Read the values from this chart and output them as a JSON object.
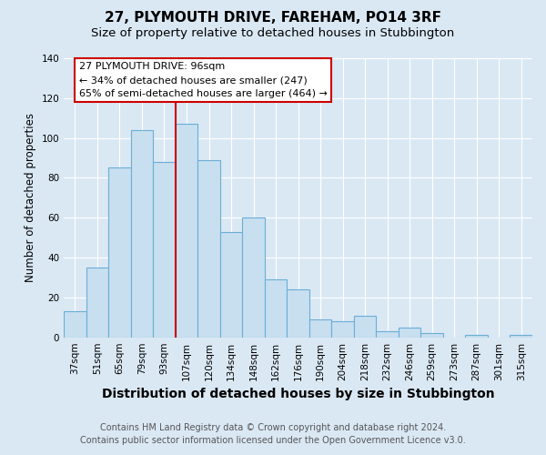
{
  "title": "27, PLYMOUTH DRIVE, FAREHAM, PO14 3RF",
  "subtitle": "Size of property relative to detached houses in Stubbington",
  "xlabel": "Distribution of detached houses by size in Stubbington",
  "ylabel": "Number of detached properties",
  "bar_labels": [
    "37sqm",
    "51sqm",
    "65sqm",
    "79sqm",
    "93sqm",
    "107sqm",
    "120sqm",
    "134sqm",
    "148sqm",
    "162sqm",
    "176sqm",
    "190sqm",
    "204sqm",
    "218sqm",
    "232sqm",
    "246sqm",
    "259sqm",
    "273sqm",
    "287sqm",
    "301sqm",
    "315sqm"
  ],
  "bar_values": [
    13,
    35,
    85,
    104,
    88,
    107,
    89,
    53,
    60,
    29,
    24,
    9,
    8,
    11,
    3,
    5,
    2,
    0,
    1,
    0,
    1
  ],
  "bar_color": "#c8dff0",
  "bar_edge_color": "#6aaed6",
  "vline_x": 4.5,
  "vline_color": "#cc0000",
  "ylim": [
    0,
    140
  ],
  "yticks": [
    0,
    20,
    40,
    60,
    80,
    100,
    120,
    140
  ],
  "annotation_title": "27 PLYMOUTH DRIVE: 96sqm",
  "annotation_line1": "← 34% of detached houses are smaller (247)",
  "annotation_line2": "65% of semi-detached houses are larger (464) →",
  "annotation_box_facecolor": "#ffffff",
  "annotation_box_edge": "#cc0000",
  "footer1": "Contains HM Land Registry data © Crown copyright and database right 2024.",
  "footer2": "Contains public sector information licensed under the Open Government Licence v3.0.",
  "fig_bg_color": "#dae8f4",
  "plot_bg_color": "#dae8f4",
  "title_fontsize": 11,
  "subtitle_fontsize": 9.5,
  "xlabel_fontsize": 10,
  "ylabel_fontsize": 8.5,
  "tick_fontsize": 7.5,
  "footer_fontsize": 7,
  "annot_fontsize": 8
}
